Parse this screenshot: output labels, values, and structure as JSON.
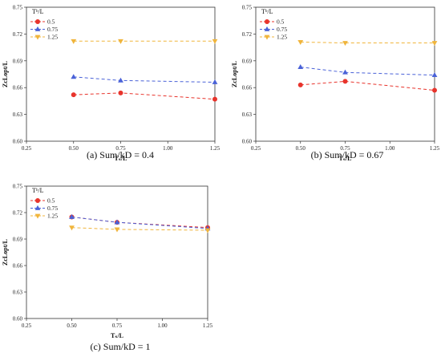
{
  "chart_data": [
    {
      "type": "line",
      "panel": "a",
      "caption": "(a) Sum/kD = 0.4",
      "xlabel": "Tₛ/L",
      "ylabel": "ZcLopt/L",
      "xlim": [
        0.25,
        1.25
      ],
      "ylim": [
        0.6,
        0.75
      ],
      "xticks": [
        "0.25",
        "0.50",
        "0.75",
        "1.00",
        "1.25"
      ],
      "yticks": [
        "0.60",
        "0.63",
        "0.66",
        "0.69",
        "0.72",
        "0.75"
      ],
      "legend_title": "Tᵇ/L",
      "legend_position": "top-left",
      "grid": false,
      "x": [
        0.5,
        0.75,
        1.25
      ],
      "series": [
        {
          "name": "0.5",
          "color": "#e8342c",
          "marker": "circle",
          "values": [
            0.652,
            0.654,
            0.647
          ]
        },
        {
          "name": "0.75",
          "color": "#4a62d8",
          "marker": "triangle-up",
          "values": [
            0.672,
            0.668,
            0.666
          ]
        },
        {
          "name": "1.25",
          "color": "#f0b53c",
          "marker": "triangle-down",
          "values": [
            0.712,
            0.712,
            0.712
          ]
        }
      ]
    },
    {
      "type": "line",
      "panel": "b",
      "caption": "(b) Sum/kD = 0.67",
      "xlabel": "Tₛ/L",
      "ylabel": "ZcLopt/L",
      "xlim": [
        0.25,
        1.25
      ],
      "ylim": [
        0.6,
        0.75
      ],
      "xticks": [
        "0.25",
        "0.50",
        "0.75",
        "1.00",
        "1.25"
      ],
      "yticks": [
        "0.60",
        "0.63",
        "0.66",
        "0.69",
        "0.72",
        "0.75"
      ],
      "legend_title": "Tᵇ/L",
      "legend_position": "top-left",
      "grid": false,
      "x": [
        0.5,
        0.75,
        1.25
      ],
      "series": [
        {
          "name": "0.5",
          "color": "#e8342c",
          "marker": "circle",
          "values": [
            0.663,
            0.667,
            0.657
          ]
        },
        {
          "name": "0.75",
          "color": "#4a62d8",
          "marker": "triangle-up",
          "values": [
            0.683,
            0.677,
            0.674
          ]
        },
        {
          "name": "1.25",
          "color": "#f0b53c",
          "marker": "triangle-down",
          "values": [
            0.711,
            0.71,
            0.71
          ]
        }
      ]
    },
    {
      "type": "line",
      "panel": "c",
      "caption": "(c) Sum/kD = 1",
      "xlabel": "Tₛ/L",
      "ylabel": "ZcLopt/L",
      "xlim": [
        0.25,
        1.25
      ],
      "ylim": [
        0.6,
        0.75
      ],
      "xticks": [
        "0.25",
        "0.50",
        "0.75",
        "1.00",
        "1.25"
      ],
      "yticks": [
        "0.60",
        "0.63",
        "0.66",
        "0.69",
        "0.72",
        "0.75"
      ],
      "legend_title": "Tᵇ/L",
      "legend_position": "top-left",
      "grid": false,
      "x": [
        0.5,
        0.75,
        1.25
      ],
      "series": [
        {
          "name": "0.5",
          "color": "#e8342c",
          "marker": "circle",
          "values": [
            0.715,
            0.709,
            0.703
          ]
        },
        {
          "name": "0.75",
          "color": "#4a62d8",
          "marker": "triangle-up",
          "values": [
            0.715,
            0.709,
            0.702
          ]
        },
        {
          "name": "1.25",
          "color": "#f0b53c",
          "marker": "triangle-down",
          "values": [
            0.703,
            0.701,
            0.7
          ]
        }
      ]
    }
  ]
}
